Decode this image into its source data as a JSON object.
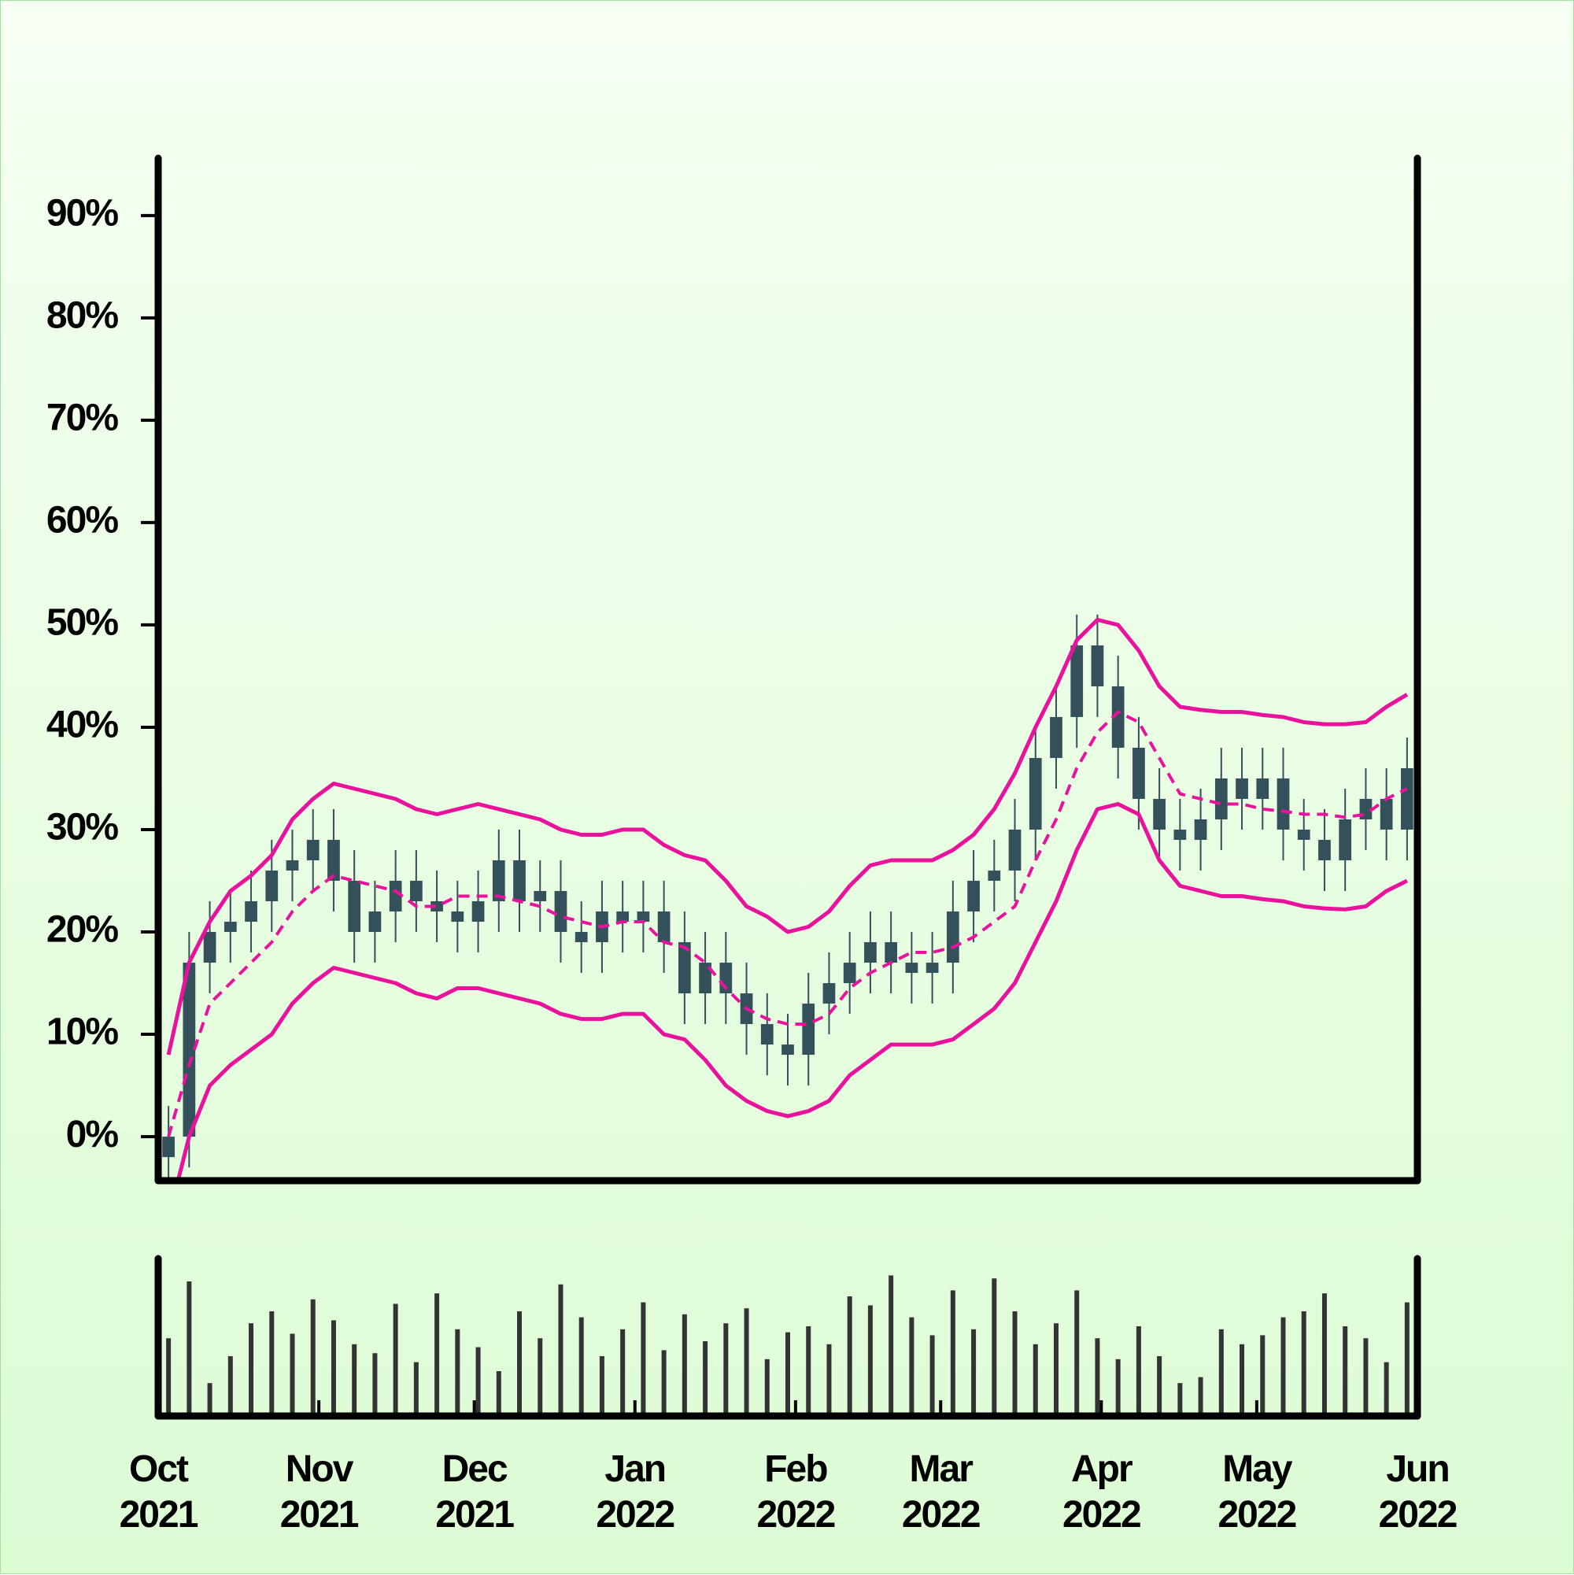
{
  "chart_data": {
    "type": "candlestick",
    "xlim": [
      "2021-10",
      "2022-06"
    ],
    "xticks": [
      {
        "value": "2021-10",
        "label": "Oct\n2021"
      },
      {
        "value": "2021-11",
        "label": "Nov\n2021"
      },
      {
        "value": "2021-12",
        "label": "Dec\n2021"
      },
      {
        "value": "2022-01",
        "label": "Jan\n2022"
      },
      {
        "value": "2022-02",
        "label": "Feb\n2022"
      },
      {
        "value": "2022-03",
        "label": "Mar\n2022"
      },
      {
        "value": "2022-04",
        "label": "Apr\n2022"
      },
      {
        "value": "2022-05",
        "label": "May\n2022"
      },
      {
        "value": "2022-06",
        "label": "Jun\n2022"
      }
    ],
    "ylim": [
      -4.3,
      95.6
    ],
    "yticks": [
      {
        "value": 0,
        "label": "0%"
      },
      {
        "value": 10,
        "label": "10%"
      },
      {
        "value": 20,
        "label": "20%"
      },
      {
        "value": 30,
        "label": "30%"
      },
      {
        "value": 40,
        "label": "40%"
      },
      {
        "value": 50,
        "label": "50%"
      },
      {
        "value": 60,
        "label": "60%"
      },
      {
        "value": 70,
        "label": "70%"
      },
      {
        "value": 80,
        "label": "80%"
      },
      {
        "value": 90,
        "label": "90%"
      }
    ],
    "color": "#34505a",
    "open": [
      -2,
      0,
      17,
      20,
      21,
      23,
      26,
      27,
      29,
      25,
      20,
      22,
      25,
      23,
      22,
      21,
      23,
      27,
      23,
      24,
      20,
      19,
      22,
      21,
      22,
      19,
      14,
      17,
      14,
      11,
      9,
      8,
      13,
      15,
      17,
      19,
      17,
      16,
      17,
      22,
      25,
      26,
      30,
      37,
      41,
      48,
      44,
      38,
      33,
      30,
      29,
      31,
      35,
      33,
      35,
      30,
      29,
      27,
      31,
      33,
      30
    ],
    "high": [
      3,
      20,
      23,
      24,
      26,
      29,
      30,
      32,
      32,
      28,
      25,
      28,
      28,
      26,
      25,
      26,
      30,
      30,
      27,
      27,
      23,
      25,
      25,
      25,
      25,
      22,
      20,
      20,
      17,
      14,
      12,
      16,
      18,
      20,
      22,
      22,
      20,
      20,
      25,
      28,
      29,
      33,
      40,
      44,
      51,
      51,
      47,
      41,
      36,
      33,
      34,
      38,
      38,
      38,
      38,
      33,
      32,
      34,
      36,
      36,
      39
    ],
    "low": [
      -5,
      -3,
      14,
      17,
      18,
      20,
      23,
      24,
      22,
      17,
      17,
      19,
      20,
      19,
      18,
      18,
      20,
      20,
      20,
      17,
      16,
      16,
      18,
      18,
      16,
      11,
      11,
      11,
      8,
      6,
      5,
      5,
      10,
      12,
      14,
      14,
      13,
      13,
      14,
      19,
      22,
      23,
      27,
      34,
      38,
      41,
      35,
      30,
      27,
      26,
      26,
      28,
      30,
      30,
      27,
      26,
      24,
      24,
      28,
      27,
      27
    ],
    "close": [
      0,
      17,
      20,
      21,
      23,
      26,
      27,
      29,
      25,
      20,
      22,
      25,
      23,
      22,
      21,
      23,
      27,
      23,
      24,
      20,
      19,
      22,
      21,
      22,
      19,
      14,
      17,
      14,
      11,
      9,
      8,
      13,
      15,
      17,
      19,
      17,
      16,
      17,
      22,
      25,
      26,
      30,
      37,
      41,
      48,
      44,
      38,
      33,
      30,
      29,
      31,
      35,
      33,
      35,
      30,
      29,
      27,
      31,
      33,
      30,
      36
    ],
    "bands": {
      "color": "#e8129c",
      "upper": [
        8,
        17,
        21,
        24,
        25.5,
        27.5,
        31,
        33,
        34.5,
        34,
        33.5,
        33,
        32,
        31.5,
        32,
        32.5,
        32,
        31.5,
        31,
        30,
        29.5,
        29.5,
        30,
        30,
        28.5,
        27.5,
        27,
        25,
        22.5,
        21.5,
        20,
        20.5,
        22,
        24.5,
        26.5,
        27,
        27,
        27,
        28,
        29.5,
        32,
        35.5,
        40,
        44,
        48.5,
        50.5,
        50,
        47.5,
        44,
        42,
        41.7,
        41.5,
        41.5,
        41.2,
        41,
        40.5,
        40.3,
        40.3,
        40.5,
        42,
        43.2
      ],
      "middle": [
        0,
        7,
        13,
        15,
        17,
        19,
        22,
        24,
        25.5,
        25,
        24.5,
        24,
        22.5,
        22.5,
        23.5,
        23.5,
        23.5,
        23,
        22.5,
        21.5,
        21,
        20.5,
        21,
        21,
        19,
        18.5,
        17,
        14.5,
        12.5,
        11.5,
        11,
        11,
        12,
        14.5,
        16,
        17,
        18,
        18,
        18.5,
        19.5,
        21,
        22.5,
        27,
        31,
        36,
        39.5,
        41.5,
        40.5,
        37,
        33.5,
        33,
        32.5,
        32.5,
        32,
        31.8,
        31.5,
        31.5,
        31.2,
        31.5,
        33,
        34
      ],
      "lower": [
        -8,
        0,
        5,
        7,
        8.5,
        10,
        13,
        15,
        16.5,
        16,
        15.5,
        15,
        14,
        13.5,
        14.5,
        14.5,
        14,
        13.5,
        13,
        12,
        11.5,
        11.5,
        12,
        12,
        10,
        9.5,
        7.5,
        5,
        3.5,
        2.5,
        2,
        2.5,
        3.5,
        6,
        7.5,
        9,
        9,
        9,
        9.5,
        11,
        12.5,
        15,
        19,
        23,
        28,
        32,
        32.5,
        31.5,
        27,
        24.5,
        24,
        23.5,
        23.5,
        23.2,
        23,
        22.5,
        22.3,
        22.2,
        22.5,
        24,
        25
      ]
    },
    "volume": {
      "color": "#333333",
      "ylim": [
        0,
        100
      ],
      "values": [
        52,
        90,
        22,
        40,
        62,
        70,
        55,
        78,
        64,
        48,
        42,
        75,
        36,
        82,
        58,
        46,
        30,
        70,
        52,
        88,
        66,
        40,
        58,
        76,
        44,
        68,
        50,
        62,
        72,
        38,
        56,
        60,
        48,
        80,
        74,
        94,
        66,
        54,
        84,
        58,
        92,
        70,
        48,
        62,
        84,
        52,
        38,
        60,
        40,
        22,
        26,
        58,
        48,
        54,
        66,
        70,
        82,
        60,
        52,
        36,
        76
      ]
    }
  }
}
